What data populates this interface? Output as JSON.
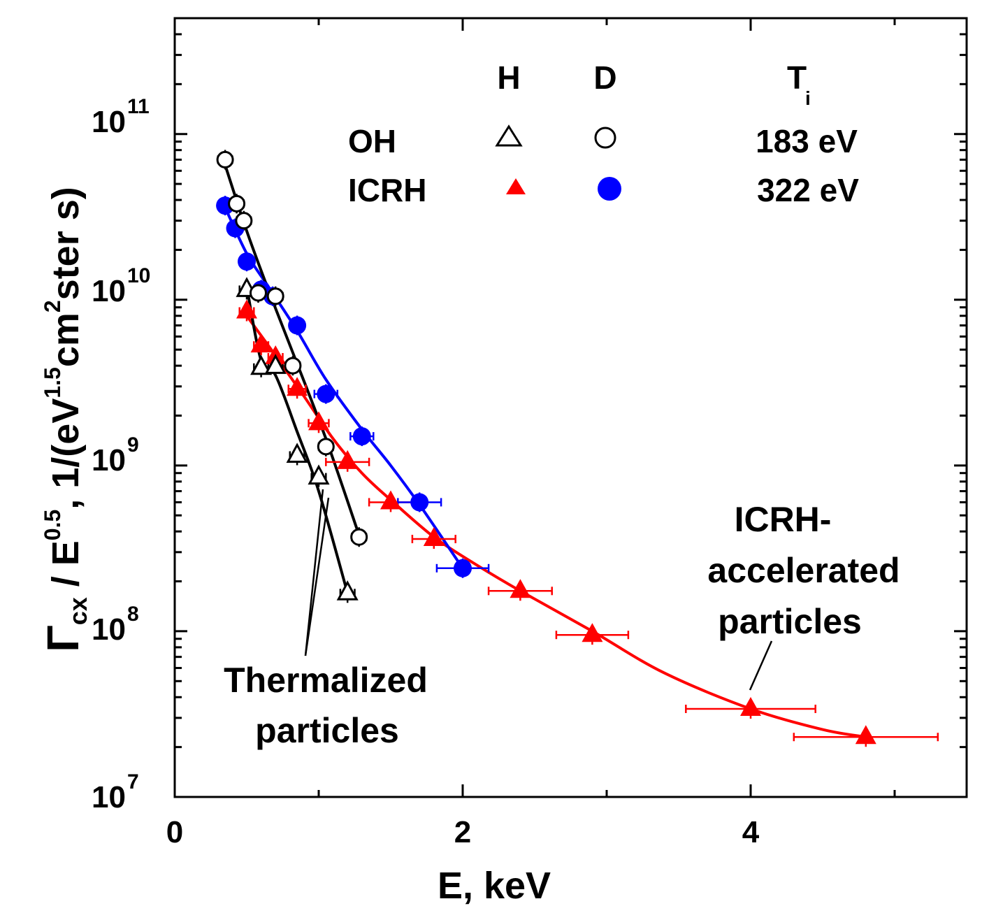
{
  "chart_data": {
    "type": "scatter",
    "title": "",
    "xlabel": "E, keV",
    "ylabel_parts": {
      "gamma": "Γ",
      "gamma_sub": "cx",
      "slash_e": " / E",
      "e_sup": "0.5",
      "comma_unit": ", 1/(eV",
      "unit_sup_15": "1.5",
      "cm": "cm",
      "cm_sup": "2",
      "tail": "ster s)"
    },
    "x_range": [
      0,
      5.5
    ],
    "y_range": [
      10000000.0,
      500000000000.0
    ],
    "y_scale": "log",
    "x_ticks": [
      {
        "value": 0,
        "label": "0"
      },
      {
        "value": 2,
        "label": "2"
      },
      {
        "value": 4,
        "label": "4"
      }
    ],
    "y_ticks": [
      {
        "value": 10000000.0,
        "base": "10",
        "exp": "7"
      },
      {
        "value": 100000000.0,
        "base": "10",
        "exp": "8"
      },
      {
        "value": 1000000000.0,
        "base": "10",
        "exp": "9"
      },
      {
        "value": 10000000000.0,
        "base": "10",
        "exp": "10"
      },
      {
        "value": 100000000000.0,
        "base": "10",
        "exp": "11"
      }
    ],
    "legend": {
      "header_h": "H",
      "header_d": "D",
      "header_t": "T",
      "header_t_sub": "i",
      "row_oh": "OH",
      "row_icrh": "ICRH",
      "ti_oh": "183 eV",
      "ti_icrh": "322 eV"
    },
    "annotations": {
      "thermal_line1": "Thermalized",
      "thermal_line2": "particles",
      "icrh_line1": "ICRH-",
      "icrh_line2": "accelerated",
      "icrh_line3": "particles"
    },
    "series": [
      {
        "name": "OH H",
        "marker": "triangle-open",
        "color": "#000000",
        "points": [
          [
            0.5,
            11500000000.0
          ],
          [
            0.6,
            3900000000.0
          ],
          [
            0.7,
            3950000000.0
          ],
          [
            0.85,
            1150000000.0
          ],
          [
            1.0,
            850000000.0
          ],
          [
            1.2,
            170000000.0
          ]
        ],
        "fit": [
          [
            0.5,
            12000000000.0
          ],
          [
            0.6,
            4300000000.0
          ],
          [
            0.7,
            3500000000.0
          ],
          [
            0.85,
            1600000000.0
          ],
          [
            1.0,
            700000000.0
          ],
          [
            1.2,
            170000000.0
          ]
        ],
        "xerr": 0.05
      },
      {
        "name": "OH D",
        "marker": "circle-open",
        "color": "#000000",
        "points": [
          [
            0.35,
            70000000000.0
          ],
          [
            0.43,
            38000000000.0
          ],
          [
            0.48,
            30000000000.0
          ],
          [
            0.58,
            11000000000.0
          ],
          [
            0.7,
            10500000000.0
          ],
          [
            0.82,
            4000000000.0
          ],
          [
            1.05,
            1300000000.0
          ],
          [
            1.28,
            370000000.0
          ]
        ],
        "fit": [
          [
            0.35,
            65000000000.0
          ],
          [
            0.5,
            26000000000.0
          ],
          [
            0.65,
            11500000000.0
          ],
          [
            0.82,
            4800000000.0
          ],
          [
            1.05,
            1450000000.0
          ],
          [
            1.28,
            380000000.0
          ]
        ],
        "xerr": 0.05
      },
      {
        "name": "ICRH H",
        "marker": "triangle-filled",
        "color": "#ff0000",
        "points": [
          [
            0.5,
            8500000000.0
          ],
          [
            0.6,
            5300000000.0
          ],
          [
            0.7,
            4500000000.0
          ],
          [
            0.85,
            2900000000.0
          ],
          [
            1.0,
            1800000000.0
          ],
          [
            1.2,
            1050000000.0
          ],
          [
            1.5,
            600000000.0
          ],
          [
            1.8,
            360000000.0
          ],
          [
            2.4,
            175000000.0
          ],
          [
            2.9,
            95000000.0
          ],
          [
            4.0,
            34000000.0
          ],
          [
            4.8,
            23000000.0
          ]
        ],
        "fit": [
          [
            0.5,
            8000000000.0
          ],
          [
            0.7,
            4600000000.0
          ],
          [
            0.9,
            2600000000.0
          ],
          [
            1.1,
            1450000000.0
          ],
          [
            1.3,
            900000000.0
          ],
          [
            1.5,
            620000000.0
          ],
          [
            1.8,
            370000000.0
          ],
          [
            2.1,
            250000000.0
          ],
          [
            2.4,
            175000000.0
          ],
          [
            2.9,
            100000000.0
          ],
          [
            3.4,
            56000000.0
          ],
          [
            4.0,
            34000000.0
          ],
          [
            4.5,
            25500000.0
          ],
          [
            4.8,
            23000000.0
          ]
        ],
        "xerr": [
          0.05,
          0.05,
          0.05,
          0.06,
          0.07,
          0.15,
          0.15,
          0.15,
          0.22,
          0.25,
          0.45,
          0.5
        ]
      },
      {
        "name": "ICRH D",
        "marker": "circle-filled",
        "color": "#0000ff",
        "points": [
          [
            0.35,
            37000000000.0
          ],
          [
            0.42,
            27000000000.0
          ],
          [
            0.5,
            17000000000.0
          ],
          [
            0.6,
            11500000000.0
          ],
          [
            0.68,
            10500000000.0
          ],
          [
            0.85,
            7000000000.0
          ],
          [
            1.05,
            2700000000.0
          ],
          [
            1.3,
            1500000000.0
          ],
          [
            1.7,
            600000000.0
          ],
          [
            2.0,
            240000000.0
          ]
        ],
        "fit": [
          [
            0.35,
            36000000000.0
          ],
          [
            0.5,
            19000000000.0
          ],
          [
            0.65,
            12000000000.0
          ],
          [
            0.85,
            6500000000.0
          ],
          [
            1.05,
            3300000000.0
          ],
          [
            1.3,
            1650000000.0
          ],
          [
            1.5,
            1000000000.0
          ],
          [
            1.7,
            580000000.0
          ],
          [
            2.0,
            240000000.0
          ]
        ],
        "xerr": [
          0.05,
          0.05,
          0.05,
          0.05,
          0.05,
          0.05,
          0.08,
          0.08,
          0.15,
          0.18
        ]
      }
    ],
    "colors": {
      "axis": "#000000",
      "icrh_h": "#ff0000",
      "icrh_d": "#0000ff",
      "oh": "#000000"
    }
  }
}
